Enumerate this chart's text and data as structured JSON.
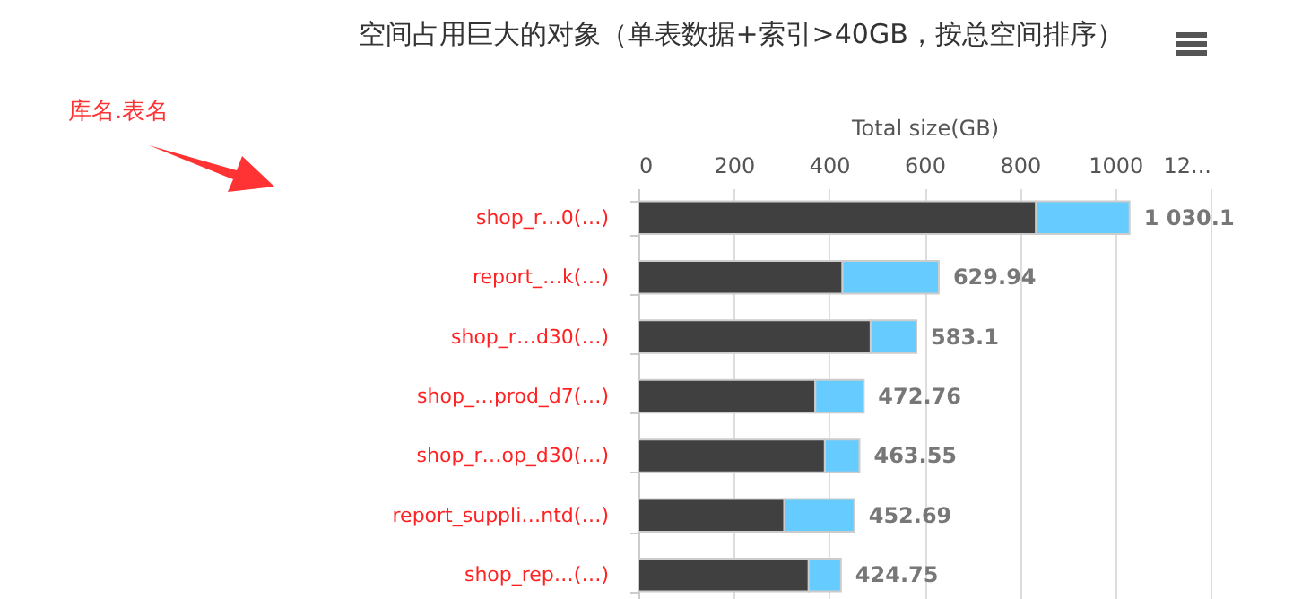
{
  "chart_data": {
    "type": "bar",
    "orientation": "horizontal",
    "stacked": true,
    "title": "空间占用巨大的对象（单表数据+索引>40GB，按总空间排序）",
    "xlabel": "Total size(GB)",
    "categories": [
      "shop_r…0(…)",
      "report_…k(…)",
      "shop_r…d30(…)",
      "shop_…prod_d7(…)",
      "shop_r…op_d30(…)",
      "report_suppli…ntd(…)",
      "shop_rep…(…)"
    ],
    "series": [
      {
        "color": "#404040",
        "values": [
          834,
          428,
          487,
          371,
          391,
          306,
          357
        ]
      },
      {
        "color": "#66ccff",
        "values": [
          196.1,
          201.94,
          96.1,
          101.76,
          72.55,
          146.69,
          67.75
        ]
      }
    ],
    "totals": [
      "1 030.1",
      "629.94",
      "583.1",
      "472.76",
      "463.55",
      "452.69",
      "424.75"
    ],
    "xlim": [
      0,
      1200
    ],
    "xticks": [
      0,
      200,
      400,
      600,
      800,
      1000,
      {
        "value": 1200,
        "label": "12..."
      }
    ],
    "grid": "x",
    "annotations": [
      "库名.表名"
    ]
  }
}
